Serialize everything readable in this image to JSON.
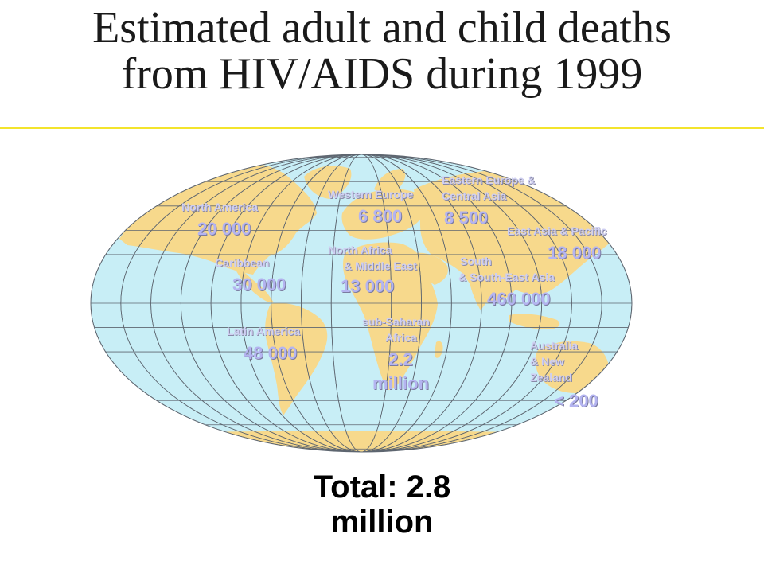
{
  "title": {
    "line1": "Estimated adult and child deaths",
    "line2": "from HIV/AIDS during 1999"
  },
  "colors": {
    "title_rule": "#f3e42c",
    "ocean": "#c8eef6",
    "land": "#f7d98c",
    "grid": "#5e6670",
    "label_text": "#cfcff2",
    "value_text": "#b4b4f0"
  },
  "map": {
    "projection": "elliptical world map (Mollweide-style) with graticule",
    "regions": [
      {
        "id": "north-america",
        "label": [
          "North America"
        ],
        "value": [
          "20 000"
        ]
      },
      {
        "id": "caribbean",
        "label": [
          "Caribbean"
        ],
        "value": [
          "30 000"
        ]
      },
      {
        "id": "latin-america",
        "label": [
          "Latin America"
        ],
        "value": [
          "48 000"
        ]
      },
      {
        "id": "western-europe",
        "label": [
          "Western Europe"
        ],
        "value": [
          "6 800"
        ]
      },
      {
        "id": "north-africa-middle-east",
        "label": [
          "North Africa",
          "& Middle East"
        ],
        "value": [
          "13 000"
        ]
      },
      {
        "id": "sub-saharan-africa",
        "label": [
          "sub-Saharan",
          "Africa"
        ],
        "value": [
          "2.2",
          "million"
        ]
      },
      {
        "id": "eastern-europe-central-asia",
        "label": [
          "Eastern Europe &",
          "Central Asia"
        ],
        "value": [
          "8 500"
        ]
      },
      {
        "id": "east-asia-pacific",
        "label": [
          "East Asia & Pacific"
        ],
        "value": [
          "18 000"
        ]
      },
      {
        "id": "south-south-east-asia",
        "label": [
          "South",
          "& South-East Asia"
        ],
        "value": [
          "460 000"
        ]
      },
      {
        "id": "australia-new-zealand",
        "label": [
          "Australia",
          "& New",
          "Zealand"
        ],
        "value": [
          "< 200"
        ]
      }
    ]
  },
  "total": {
    "line1": "Total: 2.8",
    "line2": "million"
  }
}
